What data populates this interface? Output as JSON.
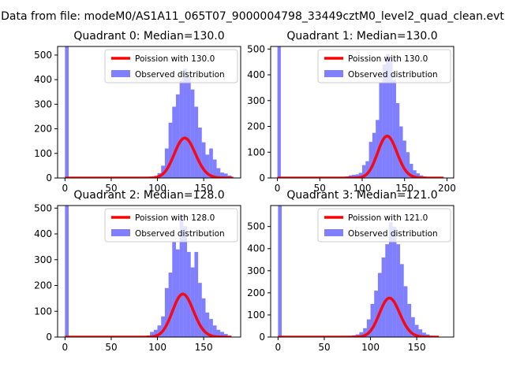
{
  "figure": {
    "suptitle": "Data from file: modeM0/AS1A11_065T07_9000004798_33449cztM0_level2_quad_clean.evt"
  },
  "colors": {
    "fit": "#ff0000",
    "hist": "#0000ff",
    "axis": "#000000"
  },
  "chart_data": [
    {
      "type": "histogram",
      "title": "Quadrant 0: Median=130.0",
      "xlim": [
        -8,
        190
      ],
      "ylim": [
        0,
        535
      ],
      "xticks": [
        0,
        50,
        100,
        150
      ],
      "yticks": [
        0,
        100,
        200,
        300,
        400,
        500
      ],
      "bin_width": 4,
      "legend": {
        "position": "top-right",
        "fit_label": "Poission with 130.0",
        "hist_label": "Observed distribution"
      },
      "fit": {
        "label": "Poission with 130.0",
        "mean": 130.0,
        "scale": 4645,
        "x_range": [
          0,
          182
        ]
      },
      "bins": [
        {
          "x": 0,
          "count": 540
        },
        {
          "x": 88,
          "count": 2
        },
        {
          "x": 92,
          "count": 3
        },
        {
          "x": 96,
          "count": 8
        },
        {
          "x": 100,
          "count": 20
        },
        {
          "x": 104,
          "count": 50
        },
        {
          "x": 108,
          "count": 120
        },
        {
          "x": 112,
          "count": 225
        },
        {
          "x": 116,
          "count": 290
        },
        {
          "x": 120,
          "count": 340
        },
        {
          "x": 124,
          "count": 395
        },
        {
          "x": 128,
          "count": 445
        },
        {
          "x": 132,
          "count": 410
        },
        {
          "x": 136,
          "count": 360
        },
        {
          "x": 140,
          "count": 290
        },
        {
          "x": 144,
          "count": 205
        },
        {
          "x": 148,
          "count": 145
        },
        {
          "x": 152,
          "count": 95
        },
        {
          "x": 156,
          "count": 120
        },
        {
          "x": 160,
          "count": 75
        },
        {
          "x": 164,
          "count": 40
        },
        {
          "x": 168,
          "count": 22
        },
        {
          "x": 172,
          "count": 18
        },
        {
          "x": 176,
          "count": 10
        }
      ]
    },
    {
      "type": "histogram",
      "title": "Quadrant 1: Median=130.0",
      "xlim": [
        -8,
        208
      ],
      "ylim": [
        0,
        510
      ],
      "xticks": [
        0,
        50,
        100,
        150,
        200
      ],
      "yticks": [
        0,
        100,
        200,
        300,
        400,
        500
      ],
      "bin_width": 4,
      "legend": {
        "position": "top-right",
        "fit_label": "Poission with 130.0",
        "hist_label": "Observed distribution"
      },
      "fit": {
        "label": "Poission with 130.0",
        "mean": 130.0,
        "scale": 4645,
        "x_range": [
          0,
          196
        ]
      },
      "bins": [
        {
          "x": 0,
          "count": 520
        },
        {
          "x": 72,
          "count": 2
        },
        {
          "x": 76,
          "count": 4
        },
        {
          "x": 80,
          "count": 6
        },
        {
          "x": 84,
          "count": 10
        },
        {
          "x": 88,
          "count": 12
        },
        {
          "x": 92,
          "count": 14
        },
        {
          "x": 96,
          "count": 20
        },
        {
          "x": 100,
          "count": 50
        },
        {
          "x": 104,
          "count": 65
        },
        {
          "x": 108,
          "count": 140
        },
        {
          "x": 112,
          "count": 175
        },
        {
          "x": 116,
          "count": 225
        },
        {
          "x": 120,
          "count": 370
        },
        {
          "x": 124,
          "count": 440
        },
        {
          "x": 128,
          "count": 480
        },
        {
          "x": 132,
          "count": 465
        },
        {
          "x": 136,
          "count": 380
        },
        {
          "x": 140,
          "count": 290
        },
        {
          "x": 144,
          "count": 200
        },
        {
          "x": 148,
          "count": 145
        },
        {
          "x": 152,
          "count": 100
        },
        {
          "x": 156,
          "count": 55
        },
        {
          "x": 160,
          "count": 30
        },
        {
          "x": 164,
          "count": 18
        },
        {
          "x": 168,
          "count": 10
        },
        {
          "x": 172,
          "count": 6
        },
        {
          "x": 176,
          "count": 3
        }
      ]
    },
    {
      "type": "histogram",
      "title": "Quadrant 2: Median=128.0",
      "xlim": [
        -8,
        190
      ],
      "ylim": [
        0,
        510
      ],
      "xticks": [
        0,
        50,
        100,
        150
      ],
      "yticks": [
        0,
        100,
        200,
        300,
        400,
        500
      ],
      "bin_width": 4,
      "legend": {
        "position": "top-right",
        "fit_label": "Poission with 128.0",
        "hist_label": "Observed distribution"
      },
      "fit": {
        "label": "Poission with 128.0",
        "mean": 128.0,
        "scale": 4730,
        "x_range": [
          0,
          180
        ]
      },
      "bins": [
        {
          "x": 0,
          "count": 520
        },
        {
          "x": 84,
          "count": 2
        },
        {
          "x": 88,
          "count": 6
        },
        {
          "x": 92,
          "count": 20
        },
        {
          "x": 96,
          "count": 28
        },
        {
          "x": 100,
          "count": 45
        },
        {
          "x": 104,
          "count": 80
        },
        {
          "x": 108,
          "count": 190
        },
        {
          "x": 112,
          "count": 250
        },
        {
          "x": 116,
          "count": 370
        },
        {
          "x": 120,
          "count": 340
        },
        {
          "x": 124,
          "count": 470
        },
        {
          "x": 128,
          "count": 430
        },
        {
          "x": 132,
          "count": 330
        },
        {
          "x": 136,
          "count": 270
        },
        {
          "x": 140,
          "count": 330
        },
        {
          "x": 144,
          "count": 210
        },
        {
          "x": 148,
          "count": 150
        },
        {
          "x": 152,
          "count": 95
        },
        {
          "x": 156,
          "count": 70
        },
        {
          "x": 160,
          "count": 45
        },
        {
          "x": 164,
          "count": 28
        },
        {
          "x": 168,
          "count": 20
        },
        {
          "x": 172,
          "count": 12
        },
        {
          "x": 176,
          "count": 5
        }
      ]
    },
    {
      "type": "histogram",
      "title": "Quadrant 3: Median=121.0",
      "xlim": [
        -8,
        190
      ],
      "ylim": [
        0,
        595
      ],
      "xticks": [
        0,
        50,
        100,
        150
      ],
      "yticks": [
        0,
        100,
        200,
        300,
        400,
        500
      ],
      "bin_width": 4,
      "legend": {
        "position": "top-right",
        "fit_label": "Poission with 121.0",
        "hist_label": "Observed distribution"
      },
      "fit": {
        "label": "Poission with 121.0",
        "mean": 121.0,
        "scale": 4865,
        "x_range": [
          0,
          174
        ]
      },
      "bins": [
        {
          "x": 0,
          "count": 600
        },
        {
          "x": 68,
          "count": 2
        },
        {
          "x": 72,
          "count": 3
        },
        {
          "x": 76,
          "count": 5
        },
        {
          "x": 80,
          "count": 8
        },
        {
          "x": 84,
          "count": 12
        },
        {
          "x": 88,
          "count": 22
        },
        {
          "x": 92,
          "count": 40
        },
        {
          "x": 96,
          "count": 80
        },
        {
          "x": 100,
          "count": 150
        },
        {
          "x": 104,
          "count": 210
        },
        {
          "x": 108,
          "count": 290
        },
        {
          "x": 112,
          "count": 360
        },
        {
          "x": 116,
          "count": 420
        },
        {
          "x": 120,
          "count": 520
        },
        {
          "x": 124,
          "count": 500
        },
        {
          "x": 128,
          "count": 420
        },
        {
          "x": 132,
          "count": 330
        },
        {
          "x": 136,
          "count": 230
        },
        {
          "x": 140,
          "count": 150
        },
        {
          "x": 144,
          "count": 90
        },
        {
          "x": 148,
          "count": 55
        },
        {
          "x": 152,
          "count": 35
        },
        {
          "x": 156,
          "count": 20
        },
        {
          "x": 160,
          "count": 12
        },
        {
          "x": 164,
          "count": 6
        },
        {
          "x": 168,
          "count": 3
        }
      ]
    }
  ]
}
